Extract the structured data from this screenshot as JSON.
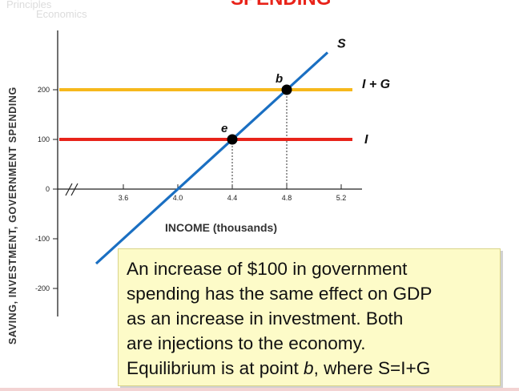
{
  "header": {
    "title_fragment": "SPENDING",
    "ghost_text_1": "Principles",
    "ghost_text_2": "Economics"
  },
  "colors": {
    "saving_line": "#1a6fc2",
    "investment_line": "#e8231a",
    "i_plus_g_line": "#f6b81c",
    "note_bg": "#fdfbc8",
    "header": "#e8231a"
  },
  "chart_data": {
    "type": "line",
    "title": "",
    "xlabel": "INCOME (thousands)",
    "ylabel": "SAVING, INVESTMENT, GOVERNMENT SPENDING",
    "xlim": [
      3.2,
      5.4
    ],
    "ylim": [
      -250,
      300
    ],
    "x_ticks": [
      "3.6",
      "4.0",
      "4.4",
      "4.8",
      "5.2"
    ],
    "x_tick_values": [
      3.6,
      4.0,
      4.4,
      4.8,
      5.2
    ],
    "y_ticks": [
      "200",
      "100",
      "0",
      "-100",
      "-200"
    ],
    "y_tick_values": [
      200,
      100,
      0,
      -100,
      -200
    ],
    "axis_break": true,
    "grid": false,
    "series": [
      {
        "name": "S",
        "type": "line",
        "points": [
          [
            3.4,
            -150
          ],
          [
            5.1,
            275
          ]
        ]
      },
      {
        "name": "I",
        "type": "hline",
        "y": 100,
        "x_range": [
          3.3,
          5.3
        ]
      },
      {
        "name": "I + G",
        "type": "hline",
        "y": 200,
        "x_range": [
          3.3,
          5.3
        ]
      }
    ],
    "points": [
      {
        "label": "e",
        "x": 4.4,
        "y": 100
      },
      {
        "label": "b",
        "x": 4.8,
        "y": 200
      }
    ]
  },
  "note": {
    "line1": "An increase of $100 in government",
    "line2": "spending has the same effect on GDP",
    "line3": "as an increase in investment. Both",
    "line4": "are injections to the economy.",
    "line5_before": "Equilibrium is at point ",
    "line5_point": "b",
    "line5_after": ", where S=I+G"
  }
}
